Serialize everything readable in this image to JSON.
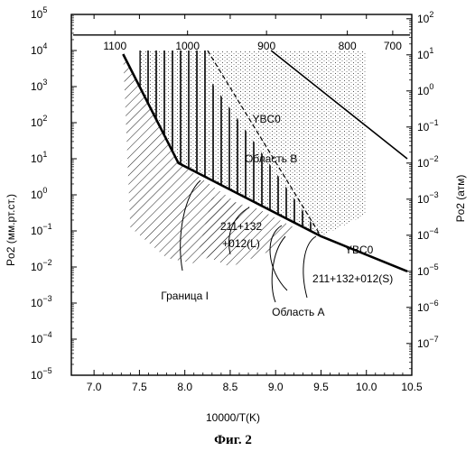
{
  "chart_data": {
    "type": "line",
    "caption": "Фиг. 2",
    "xlabel": "10000/T(K)",
    "ylabel_left": "Po2 (мм.рт.ст.)",
    "ylabel_right": "Po2 (атм)",
    "xlim": [
      6.75,
      10.5
    ],
    "ylim_left_exp": [
      -5,
      5
    ],
    "ylim_right_exp": [
      -7.88,
      2.12
    ],
    "x_ticks": [
      "7.0",
      "7.5",
      "8.0",
      "8.5",
      "9.0",
      "9.5",
      "10.0",
      "10.5"
    ],
    "x_tick_values": [
      7.0,
      7.5,
      8.0,
      8.5,
      9.0,
      9.5,
      10.0,
      10.5
    ],
    "y_left_exponents": [
      5,
      4,
      3,
      2,
      1,
      0,
      -1,
      -2,
      -3,
      -4,
      -5
    ],
    "y_right_exponents": [
      2,
      1,
      0,
      -1,
      -2,
      -3,
      -4,
      -5,
      -6,
      -7
    ],
    "log_base_label": "10",
    "top_axis": {
      "label_values": [
        "1100",
        "1000",
        "900",
        "800",
        "700"
      ],
      "positions_x": [
        7.23,
        8.03,
        8.9,
        9.79,
        10.29
      ]
    },
    "series": [
      {
        "name": "YBCO",
        "points": [
          [
            8.95,
            4.0
          ],
          [
            10.45,
            1.0
          ]
        ]
      },
      {
        "name": "",
        "points": [
          [
            7.32,
            3.9
          ],
          [
            7.93,
            0.88
          ],
          [
            9.5,
            -1.15
          ],
          [
            10.45,
            -2.12
          ]
        ]
      }
    ],
    "regions": [
      {
        "name": "Область В",
        "polygon": [
          [
            7.5,
            4.0
          ],
          [
            8.25,
            4.0
          ],
          [
            8.3,
            3.1
          ],
          [
            9.5,
            -1.15
          ],
          [
            7.93,
            0.88
          ],
          [
            7.5,
            3.0
          ]
        ]
      },
      {
        "name": "stipple",
        "polygon": [
          [
            7.5,
            4.0
          ],
          [
            10.0,
            4.0
          ],
          [
            10.0,
            -0.55
          ],
          [
            9.5,
            -1.15
          ],
          [
            7.93,
            0.88
          ],
          [
            7.5,
            3.0
          ]
        ]
      },
      {
        "name": "hatch_left",
        "polygon": [
          [
            7.32,
            3.9
          ],
          [
            7.93,
            0.88
          ],
          [
            8.65,
            -0.35
          ],
          [
            8.4,
            -1.6
          ],
          [
            8.1,
            -1.9
          ],
          [
            7.8,
            -1.75
          ],
          [
            7.4,
            -0.9
          ]
        ]
      },
      {
        "name": "hatch_lower",
        "polygon": [
          [
            8.3,
            -0.05
          ],
          [
            8.8,
            -0.38
          ],
          [
            9.2,
            -0.9
          ],
          [
            8.9,
            -1.6
          ],
          [
            8.5,
            -2.0
          ],
          [
            8.15,
            -1.6
          ]
        ]
      }
    ],
    "annotations": [
      {
        "text": "YBC0",
        "x": 8.9,
        "y": 2.0
      },
      {
        "text": "Область В",
        "x": 8.95,
        "y": 0.9
      },
      {
        "text": "211+132",
        "x": 8.62,
        "y": -0.98
      },
      {
        "text": "+012(L)",
        "x": 8.62,
        "y": -1.45
      },
      {
        "text": "YBC0",
        "x": 9.92,
        "y": -1.62
      },
      {
        "text": "211+132+012(S)",
        "x": 9.85,
        "y": -2.42
      },
      {
        "text": "Граница I",
        "x": 8.0,
        "y": -2.9
      },
      {
        "text": "Область А",
        "x": 9.25,
        "y": -3.35
      }
    ]
  }
}
